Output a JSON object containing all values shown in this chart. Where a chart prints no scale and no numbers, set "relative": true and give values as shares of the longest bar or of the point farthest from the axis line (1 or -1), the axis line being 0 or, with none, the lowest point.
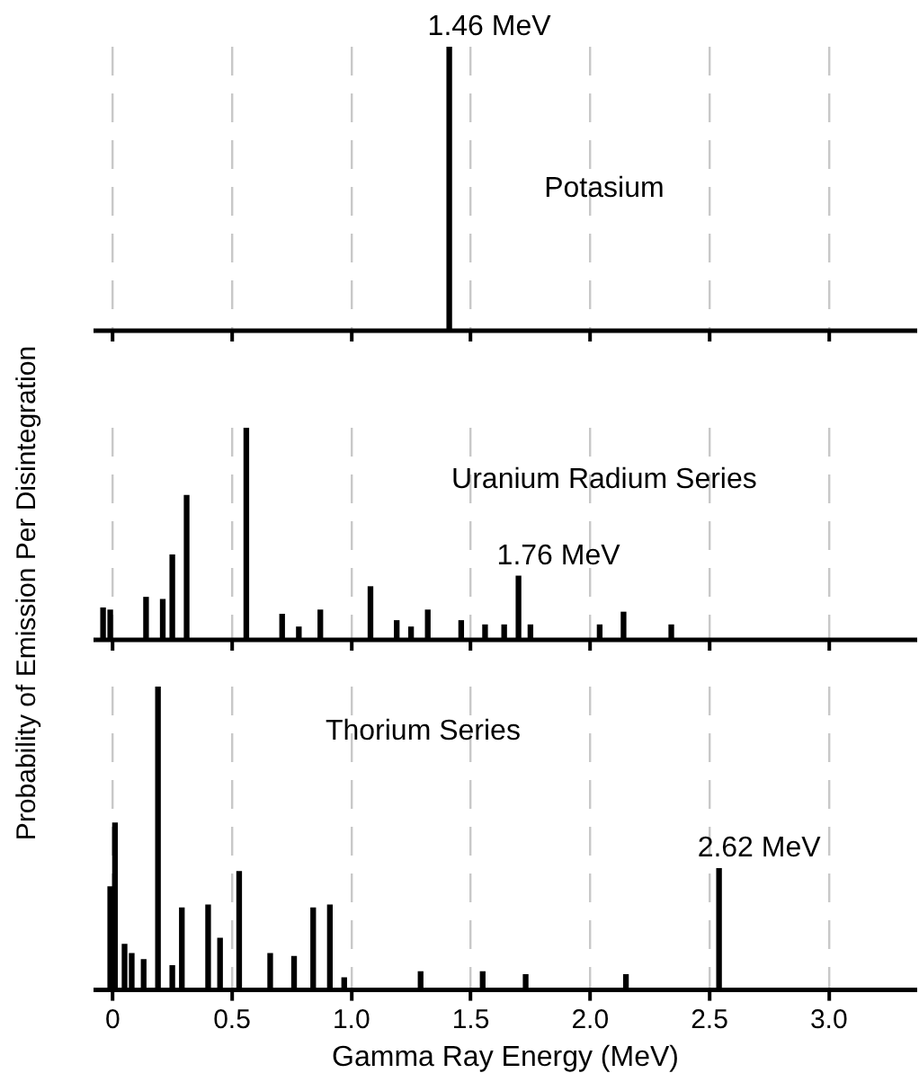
{
  "chart_data": [
    {
      "type": "bar",
      "title": "Potasium",
      "relative": true,
      "color": "#000000",
      "x": [
        1.41
      ],
      "values": [
        1
      ],
      "annotations": [
        {
          "text": "1.46 MeV",
          "x": 1.41,
          "y": 1
        }
      ],
      "xlim": [
        -0.08,
        3.37
      ],
      "xticks": [
        {
          "value": 0,
          "label": null
        },
        {
          "value": 0.5,
          "label": null
        },
        {
          "value": 1,
          "label": null
        },
        {
          "value": 1.5,
          "label": null
        },
        {
          "value": 2,
          "label": null
        },
        {
          "value": 2.5,
          "label": null
        },
        {
          "value": 3,
          "label": null
        }
      ],
      "grid": "x",
      "tick_labels": false
    },
    {
      "type": "bar",
      "title": "Uranium Radium Series",
      "ylabel": "Probability of Emission Per Disintegration",
      "relative": true,
      "color": "#000000",
      "x": [
        -0.04,
        -0.01,
        0.14,
        0.21,
        0.25,
        0.31,
        0.56,
        0.71,
        0.78,
        0.87,
        1.08,
        1.19,
        1.25,
        1.32,
        1.46,
        1.56,
        1.64,
        1.7,
        1.75,
        2.04,
        2.14,
        2.34
      ],
      "values": [
        0.15,
        0.14,
        0.2,
        0.19,
        0.4,
        0.68,
        1,
        0.12,
        0.06,
        0.14,
        0.25,
        0.09,
        0.06,
        0.14,
        0.09,
        0.07,
        0.07,
        0.3,
        0.07,
        0.07,
        0.13,
        0.07
      ],
      "annotations": [
        {
          "text": "1.76 MeV",
          "x": 1.7,
          "y": 0.3
        }
      ],
      "xlim": [
        -0.08,
        3.37
      ],
      "xticks": [
        {
          "value": 0,
          "label": null
        },
        {
          "value": 0.5,
          "label": null
        },
        {
          "value": 1,
          "label": null
        },
        {
          "value": 1.5,
          "label": null
        },
        {
          "value": 2,
          "label": null
        },
        {
          "value": 2.5,
          "label": null
        },
        {
          "value": 3,
          "label": null
        }
      ],
      "grid": "x",
      "tick_labels": false
    },
    {
      "type": "bar",
      "title": "Thorium Series",
      "xlabel": "Gamma Ray Energy (MeV)",
      "relative": true,
      "color": "#000000",
      "x": [
        -0.01,
        0.01,
        0.05,
        0.08,
        0.13,
        0.19,
        0.25,
        0.29,
        0.4,
        0.45,
        0.53,
        0.66,
        0.76,
        0.84,
        0.91,
        0.97,
        1.29,
        1.55,
        1.73,
        2.15,
        2.54
      ],
      "values": [
        0.34,
        0.55,
        0.15,
        0.12,
        0.1,
        1,
        0.08,
        0.27,
        0.28,
        0.17,
        0.39,
        0.12,
        0.11,
        0.27,
        0.28,
        0.04,
        0.06,
        0.06,
        0.05,
        0.05,
        0.4
      ],
      "annotations": [
        {
          "text": "2.62 MeV",
          "x": 2.54,
          "y": 0.4
        }
      ],
      "xlim": [
        -0.08,
        3.37
      ],
      "xticks": [
        0,
        0.5,
        {
          "value": 1,
          "label": "1.0"
        },
        1.5,
        {
          "value": 2,
          "label": "2.0"
        },
        2.5,
        {
          "value": 3,
          "label": "3.0"
        }
      ],
      "grid": "x",
      "tick_labels": "x"
    }
  ]
}
